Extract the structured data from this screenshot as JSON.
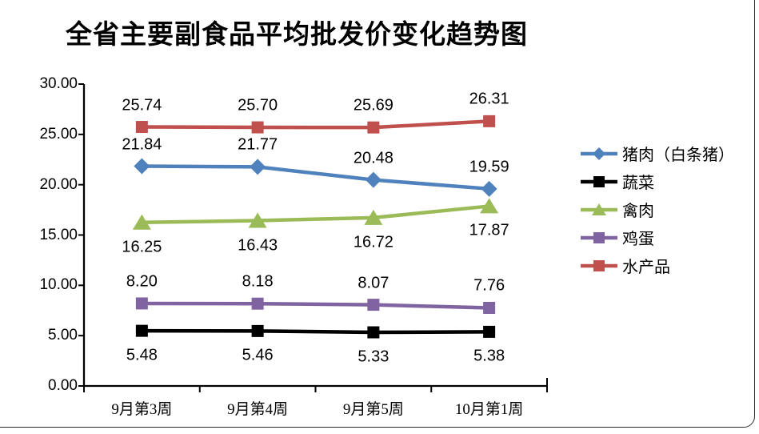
{
  "title": "全省主要副食品平均批发价变化趋势图",
  "chart_data": {
    "type": "line",
    "title": "全省主要副食品平均批发价变化趋势图",
    "categories": [
      "9月第3周",
      "9月第4周",
      "9月第5周",
      "10月第1周"
    ],
    "series": [
      {
        "name": "猪肉（白条猪）",
        "values": [
          21.84,
          21.77,
          20.48,
          19.59
        ],
        "labels": [
          "21.84",
          "21.77",
          "20.48",
          "19.59"
        ],
        "color": "#4F81BD",
        "marker": "diamond",
        "label_side": "above"
      },
      {
        "name": "蔬菜",
        "values": [
          5.48,
          5.46,
          5.33,
          5.38
        ],
        "labels": [
          "5.48",
          "5.46",
          "5.33",
          "5.38"
        ],
        "color": "#000000",
        "marker": "square",
        "label_side": "below"
      },
      {
        "name": "禽肉",
        "values": [
          16.25,
          16.43,
          16.72,
          17.87
        ],
        "labels": [
          "16.25",
          "16.43",
          "16.72",
          "17.87"
        ],
        "color": "#9BBB59",
        "marker": "triangle",
        "label_side": "below"
      },
      {
        "name": "鸡蛋",
        "values": [
          8.2,
          8.18,
          8.07,
          7.76
        ],
        "labels": [
          "8.20",
          "8.18",
          "8.07",
          "7.76"
        ],
        "color": "#8064A2",
        "marker": "square",
        "label_side": "above"
      },
      {
        "name": "水产品",
        "values": [
          25.74,
          25.7,
          25.69,
          26.31
        ],
        "labels": [
          "25.74",
          "25.70",
          "25.69",
          "26.31"
        ],
        "color": "#C0504D",
        "marker": "square",
        "label_side": "above"
      }
    ],
    "xlabel": "",
    "ylabel": "",
    "ylim": [
      0,
      30
    ],
    "ytick_step": 5,
    "ytick_labels": [
      "0.00",
      "5.00",
      "10.00",
      "15.00",
      "20.00",
      "25.00",
      "30.00"
    ],
    "grid": false,
    "legend_position": "right",
    "axis_color": "#000000"
  }
}
